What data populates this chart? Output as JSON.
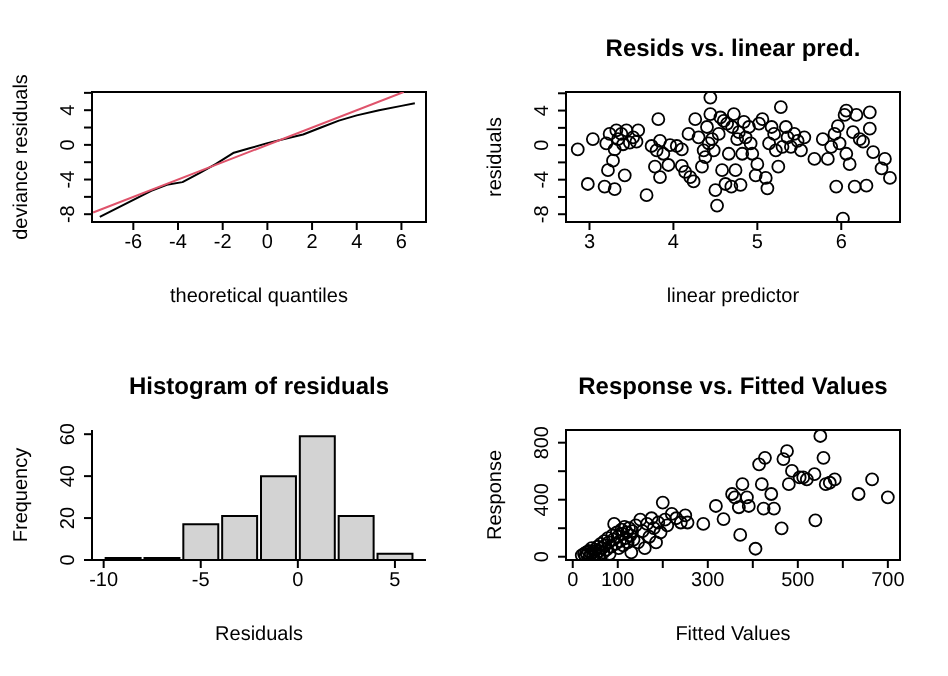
{
  "chart_data": [
    {
      "type": "line",
      "xlabel": "theoretical quantiles",
      "ylabel": "deviance residuals",
      "xlim": [
        -7.85,
        7.1
      ],
      "ylim": [
        -8.9,
        6.1
      ],
      "xticks": [
        -6,
        -4,
        -2,
        0,
        2,
        4,
        6
      ],
      "yticks": [
        -8,
        {
          "value": -6,
          "label": null
        },
        -4,
        {
          "value": -2,
          "label": null
        },
        0,
        {
          "value": 2,
          "label": null
        },
        4,
        {
          "value": 6,
          "label": null
        }
      ],
      "marker": "none",
      "series": [
        {
          "color": "#000000",
          "x": [
            -7.5,
            -5.2,
            -4.5,
            -3.8,
            -3.0,
            -2.3,
            -1.5,
            -0.8,
            0,
            0.8,
            1.6,
            2.4,
            3.2,
            4.0,
            5.0,
            6.0,
            6.6
          ],
          "values": [
            -8.3,
            -5.3,
            -4.6,
            -4.3,
            -3.2,
            -2.2,
            -0.9,
            -0.4,
            0.2,
            0.7,
            1.2,
            2.0,
            2.8,
            3.4,
            4.0,
            4.5,
            4.8
          ]
        },
        {
          "color": "#df536b",
          "x": [
            -7.8,
            6.1
          ],
          "values": [
            -7.8,
            6.1
          ]
        }
      ]
    },
    {
      "type": "scatter",
      "title": "Resids vs. linear pred.",
      "xlabel": "linear predictor",
      "ylabel": "residuals",
      "xlim": [
        2.72,
        6.7
      ],
      "ylim": [
        -8.9,
        6.15
      ],
      "xticks": [
        3,
        4,
        5,
        6
      ],
      "yticks": [
        -8,
        {
          "value": -6,
          "label": null
        },
        -4,
        {
          "value": -2,
          "label": null
        },
        0,
        {
          "value": 2,
          "label": null
        },
        4,
        {
          "value": 6,
          "label": null
        }
      ],
      "marker": "circle",
      "color": "#000000",
      "x": [
        2.86,
        2.98,
        3.04,
        3.18,
        3.2,
        3.22,
        3.24,
        3.28,
        3.3,
        3.3,
        3.32,
        3.34,
        3.38,
        3.4,
        3.42,
        3.44,
        3.48,
        3.52,
        3.56,
        3.58,
        3.68,
        3.74,
        3.78,
        3.8,
        3.82,
        3.84,
        3.84,
        3.88,
        3.94,
        3.96,
        4.04,
        4.1,
        4.1,
        4.14,
        4.18,
        4.2,
        4.24,
        4.26,
        4.3,
        4.34,
        4.36,
        4.38,
        4.4,
        4.42,
        4.44,
        4.44,
        4.46,
        4.48,
        4.5,
        4.52,
        4.54,
        4.56,
        4.58,
        4.6,
        4.62,
        4.64,
        4.66,
        4.69,
        4.7,
        4.72,
        4.74,
        4.76,
        4.78,
        4.8,
        4.82,
        4.84,
        4.86,
        4.9,
        4.92,
        4.94,
        4.98,
        5.0,
        5.02,
        5.06,
        5.1,
        5.12,
        5.14,
        5.17,
        5.2,
        5.22,
        5.25,
        5.28,
        5.3,
        5.34,
        5.36,
        5.4,
        5.44,
        5.48,
        5.52,
        5.56,
        5.68,
        5.78,
        5.84,
        5.88,
        5.92,
        5.94,
        5.96,
        5.98,
        6.02,
        6.04,
        6.06,
        6.06,
        6.1,
        6.14,
        6.16,
        6.18,
        6.22,
        6.26,
        6.3,
        6.34,
        6.34,
        6.38,
        6.48,
        6.52,
        6.58
      ],
      "values": [
        -0.5,
        -4.5,
        0.7,
        -4.8,
        0.2,
        -2.9,
        1.3,
        -1.8,
        -5.1,
        -0.5,
        1.7,
        0.7,
        1.3,
        0.1,
        -3.5,
        1.7,
        0.3,
        0.9,
        0.4,
        1.7,
        -5.8,
        -0.1,
        -2.5,
        -0.6,
        3.0,
        0.5,
        -3.7,
        -1.0,
        -2.3,
        0,
        -0.1,
        -2.4,
        -0.5,
        -3.1,
        1.3,
        -3.7,
        -4.2,
        3.0,
        0.9,
        -2.5,
        -0.6,
        -1.4,
        2.1,
        0.2,
        5.5,
        3.6,
        0.7,
        -0.6,
        -5.2,
        -7,
        1.3,
        3.2,
        -2.9,
        2.8,
        -4.5,
        2.5,
        -1.0,
        -4.8,
        2.1,
        3.6,
        -2.9,
        0.7,
        1.5,
        -4.6,
        -1.0,
        2.7,
        0.9,
        2.1,
        0.2,
        -1.0,
        -3.5,
        -2.2,
        2.5,
        3.0,
        -3.8,
        -5.0,
        0.2,
        2.1,
        1.3,
        -0.6,
        -2.5,
        4.4,
        -0.2,
        2.1,
        0.9,
        -0.2,
        1.3,
        0.5,
        -0.6,
        0.9,
        -1.6,
        0.7,
        -1.6,
        -0.2,
        1.3,
        -4.8,
        2.2,
        0.2,
        -8.5,
        3.5,
        4.0,
        -1.0,
        -2.2,
        1.5,
        -4.8,
        3.5,
        0.7,
        0.4,
        -4.7,
        3.8,
        1.9,
        -0.8,
        -2.7,
        -1.6,
        -3.8
      ]
    },
    {
      "type": "histogram",
      "title": "Histogram of residuals",
      "xlabel": "Residuals",
      "ylabel": "Frequency",
      "bins": [
        -10,
        -8,
        -6,
        -4,
        -2,
        0,
        2,
        4,
        6
      ],
      "values": [
        1,
        1,
        17,
        21,
        40,
        59,
        21,
        3
      ],
      "color": "#d3d3d3",
      "xlim": [
        -10.6,
        6.6
      ],
      "ylim": [
        0,
        62
      ],
      "xticks": [
        -10,
        -5,
        0,
        5
      ],
      "yticks": [
        0,
        20,
        40,
        60
      ]
    },
    {
      "type": "scatter",
      "title": "Response vs. Fitted Values",
      "xlabel": "Fitted Values",
      "ylabel": "Response",
      "xlim": [
        -15,
        727
      ],
      "ylim": [
        -23,
        889
      ],
      "xticks": [
        0,
        100,
        {
          "value": 200,
          "label": null
        },
        300,
        {
          "value": 400,
          "label": null
        },
        500,
        {
          "value": 600,
          "label": null
        },
        700
      ],
      "yticks": [
        0,
        {
          "value": 200,
          "label": null
        },
        400,
        {
          "value": 600,
          "label": null
        },
        800
      ],
      "marker": "circle",
      "color": "#000000",
      "x": [
        20,
        25,
        28,
        30,
        32,
        35,
        38,
        40,
        42,
        45,
        48,
        50,
        52,
        55,
        58,
        60,
        62,
        65,
        68,
        70,
        72,
        75,
        78,
        80,
        82,
        85,
        88,
        90,
        92,
        95,
        98,
        100,
        102,
        105,
        108,
        110,
        112,
        115,
        118,
        120,
        122,
        125,
        128,
        130,
        132,
        135,
        140,
        145,
        150,
        155,
        160,
        165,
        170,
        175,
        180,
        185,
        190,
        195,
        200,
        205,
        210,
        220,
        230,
        240,
        250,
        255,
        290,
        318,
        335,
        354,
        360,
        369,
        377,
        387,
        391,
        372,
        406,
        414,
        420,
        424,
        427,
        441,
        447,
        464,
        468,
        476,
        480,
        487,
        504,
        512,
        520,
        537,
        539,
        550,
        557,
        562,
        571,
        582,
        635,
        665,
        700
      ],
      "values": [
        10,
        20,
        5,
        30,
        15,
        40,
        0,
        25,
        60,
        10,
        35,
        50,
        20,
        70,
        40,
        5,
        90,
        60,
        30,
        110,
        80,
        50,
        130,
        100,
        20,
        70,
        150,
        120,
        230,
        90,
        170,
        140,
        60,
        110,
        190,
        160,
        80,
        210,
        130,
        170,
        100,
        200,
        150,
        30,
        180,
        120,
        220,
        100,
        260,
        180,
        60,
        230,
        140,
        270,
        200,
        100,
        240,
        170,
        380,
        260,
        220,
        300,
        270,
        240,
        290,
        240,
        230,
        356,
        264,
        440,
        417,
        347,
        509,
        417,
        356,
        153,
        56,
        648,
        509,
        338,
        694,
        440,
        338,
        199,
        685,
        741,
        509,
        602,
        556,
        556,
        542,
        579,
        255,
        847,
        694,
        509,
        519,
        542,
        440,
        542,
        417
      ]
    }
  ]
}
